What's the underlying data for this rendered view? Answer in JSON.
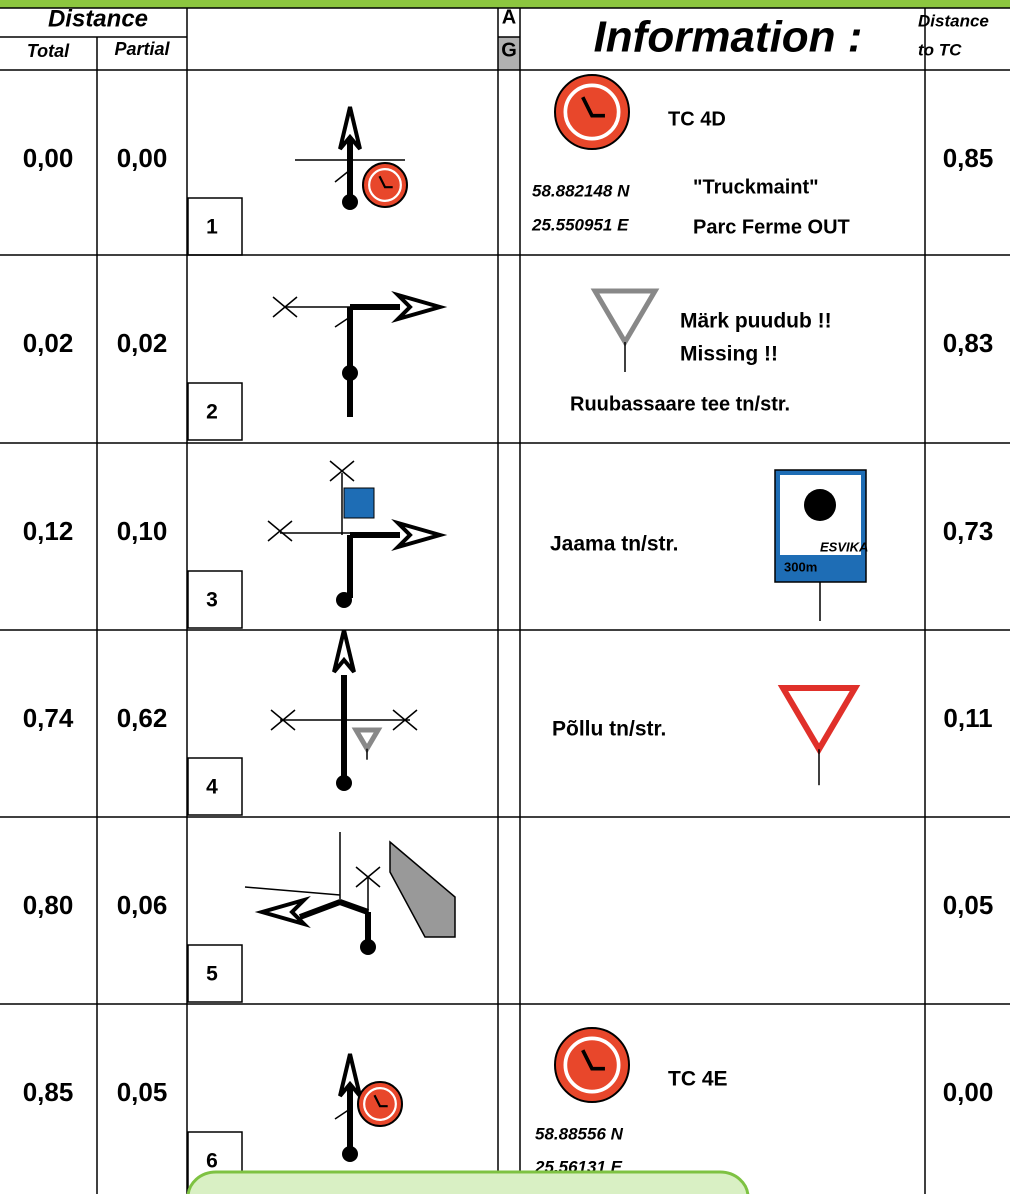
{
  "header": {
    "distance": "Distance",
    "total": "Total",
    "partial": "Partial",
    "a": "A",
    "g": "G",
    "information": "Information :",
    "distance_to_tc": "Distance",
    "to_tc": "to TC"
  },
  "rows": [
    {
      "total": "0,00",
      "partial": "0,00",
      "number": "1",
      "info": [
        "TC 4D",
        "58.882148 N",
        "\"Truckmaint\"",
        "25.550951 E",
        "Parc Ferme OUT"
      ],
      "to_tc": "0,85"
    },
    {
      "total": "0,02",
      "partial": "0,02",
      "number": "2",
      "info": [
        "Märk puudub !!",
        "Missing !!",
        "Ruubassaare tee tn/str."
      ],
      "to_tc": "0,83"
    },
    {
      "total": "0,12",
      "partial": "0,10",
      "number": "3",
      "info": [
        "Jaama tn/str.",
        "ESVIKA",
        "300m"
      ],
      "to_tc": "0,73"
    },
    {
      "total": "0,74",
      "partial": "0,62",
      "number": "4",
      "info": [
        "Põllu tn/str."
      ],
      "to_tc": "0,11"
    },
    {
      "total": "0,80",
      "partial": "0,06",
      "number": "5",
      "info": [],
      "to_tc": "0,05"
    },
    {
      "total": "0,85",
      "partial": "0,05",
      "number": "6",
      "info": [
        "TC 4E",
        "58.88556 N",
        "25.56131 E"
      ],
      "to_tc": "0,00"
    }
  ]
}
